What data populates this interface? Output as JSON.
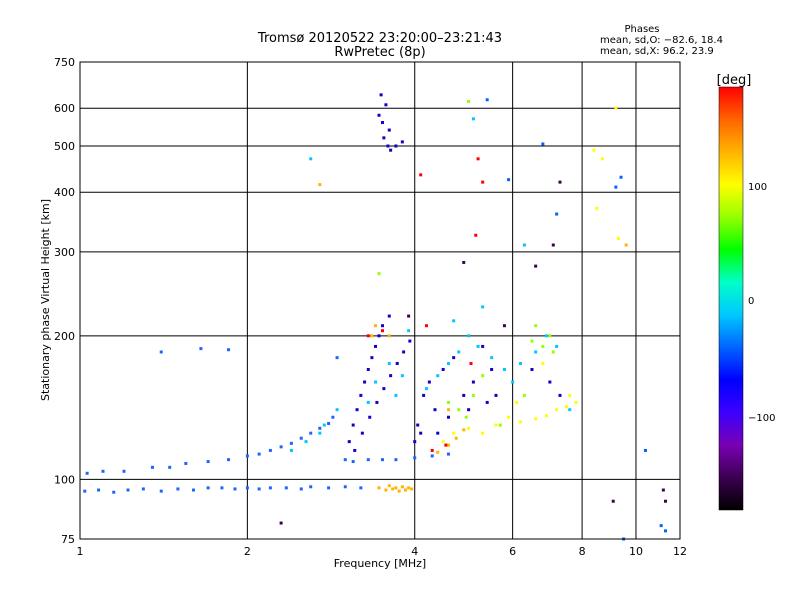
{
  "chart_data": {
    "type": "scatter",
    "title": "Tromsø 20120522 23:20:00–23:21:43",
    "subtitle": "RwPretec (8p)",
    "xlabel": "Frequency [MHz]",
    "ylabel": "Stationary phase Virtual Height [km]",
    "x_scale": "log",
    "y_scale": "log",
    "xlim": [
      1,
      12
    ],
    "ylim": [
      75,
      750
    ],
    "x_ticks": [
      1,
      2,
      4,
      6,
      8,
      10,
      12
    ],
    "y_ticks": [
      75,
      100,
      200,
      300,
      400,
      500,
      600,
      750
    ],
    "grid": true,
    "phases_box": {
      "title": "Phases",
      "line_o": "mean, sd,O: −82.6, 18.4",
      "line_x": "mean, sd,X:  96.2, 23.9"
    },
    "colorbar": {
      "label": "[deg]",
      "range": [
        -180,
        180
      ],
      "ticks": [
        "100",
        "0",
        "−100"
      ],
      "colormap": [
        "#000000",
        "#3c0050",
        "#7800b4",
        "#3c00ff",
        "#0000ff",
        "#0064ff",
        "#00c8ff",
        "#00ffc8",
        "#00ff00",
        "#96ff00",
        "#ffff00",
        "#ffb400",
        "#ff6400",
        "#ff0000"
      ]
    },
    "series": [
      {
        "color": "#1e64ff",
        "points": [
          [
            1.02,
            94.5
          ],
          [
            1.08,
            95
          ],
          [
            1.15,
            94
          ],
          [
            1.22,
            95
          ],
          [
            1.3,
            95.5
          ],
          [
            1.4,
            94.5
          ],
          [
            1.5,
            95.5
          ],
          [
            1.6,
            95
          ],
          [
            1.7,
            96
          ],
          [
            1.8,
            96
          ],
          [
            1.9,
            95.5
          ],
          [
            2.0,
            96
          ],
          [
            2.1,
            95.5
          ],
          [
            2.2,
            96
          ],
          [
            2.35,
            96
          ],
          [
            2.5,
            95.5
          ],
          [
            2.6,
            96.5
          ],
          [
            2.8,
            96
          ],
          [
            3.0,
            96.5
          ],
          [
            3.2,
            96
          ],
          [
            1.03,
            103
          ],
          [
            1.1,
            104
          ],
          [
            1.2,
            104
          ],
          [
            1.35,
            106
          ],
          [
            1.45,
            106
          ],
          [
            1.55,
            108
          ],
          [
            1.7,
            109
          ],
          [
            1.85,
            110
          ],
          [
            2.0,
            112
          ],
          [
            2.1,
            113
          ],
          [
            2.2,
            115
          ],
          [
            2.3,
            117
          ],
          [
            2.4,
            119
          ],
          [
            2.5,
            122
          ],
          [
            2.6,
            125
          ],
          [
            2.7,
            128
          ],
          [
            2.8,
            131
          ],
          [
            3.0,
            110
          ],
          [
            3.1,
            109
          ],
          [
            3.3,
            110
          ],
          [
            3.5,
            110
          ],
          [
            3.7,
            110
          ],
          [
            4.0,
            111
          ],
          [
            4.3,
            112
          ],
          [
            4.6,
            113
          ],
          [
            2.85,
            135
          ],
          [
            2.9,
            180
          ],
          [
            1.4,
            185
          ],
          [
            1.65,
            188
          ],
          [
            1.85,
            187
          ]
        ]
      },
      {
        "color": "#1400c8",
        "points": [
          [
            3.1,
            130
          ],
          [
            3.15,
            140
          ],
          [
            3.2,
            150
          ],
          [
            3.25,
            160
          ],
          [
            3.3,
            170
          ],
          [
            3.35,
            180
          ],
          [
            3.4,
            190
          ],
          [
            3.45,
            200
          ],
          [
            3.5,
            210
          ],
          [
            3.6,
            220
          ],
          [
            3.05,
            120
          ],
          [
            3.12,
            115
          ],
          [
            3.22,
            125
          ],
          [
            3.32,
            135
          ],
          [
            3.42,
            145
          ],
          [
            3.52,
            155
          ],
          [
            3.62,
            165
          ],
          [
            3.72,
            175
          ],
          [
            3.82,
            185
          ],
          [
            3.92,
            195
          ],
          [
            4.05,
            130
          ],
          [
            4.15,
            150
          ],
          [
            4.25,
            160
          ],
          [
            4.35,
            140
          ],
          [
            4.5,
            170
          ],
          [
            4.7,
            180
          ],
          [
            4.9,
            150
          ],
          [
            5.1,
            160
          ],
          [
            5.3,
            190
          ],
          [
            5.5,
            170
          ],
          [
            4.0,
            120
          ],
          [
            4.1,
            125
          ],
          [
            4.4,
            125
          ],
          [
            4.6,
            135
          ],
          [
            5.0,
            140
          ],
          [
            5.4,
            145
          ],
          [
            5.6,
            150
          ],
          [
            6.5,
            170
          ],
          [
            7.0,
            160
          ],
          [
            7.3,
            150
          ],
          [
            3.45,
            580
          ],
          [
            3.5,
            560
          ],
          [
            3.55,
            610
          ],
          [
            3.6,
            540
          ],
          [
            3.52,
            520
          ],
          [
            3.58,
            500
          ],
          [
            3.62,
            490
          ],
          [
            3.7,
            500
          ],
          [
            3.8,
            510
          ],
          [
            3.48,
            640
          ]
        ]
      },
      {
        "color": "#00c8ff",
        "points": [
          [
            2.4,
            115
          ],
          [
            2.55,
            120
          ],
          [
            2.7,
            125
          ],
          [
            2.75,
            130
          ],
          [
            2.9,
            140
          ],
          [
            3.3,
            145
          ],
          [
            3.4,
            160
          ],
          [
            3.6,
            175
          ],
          [
            3.7,
            150
          ],
          [
            3.8,
            165
          ],
          [
            4.2,
            155
          ],
          [
            4.4,
            165
          ],
          [
            4.6,
            175
          ],
          [
            4.8,
            185
          ],
          [
            5.0,
            200
          ],
          [
            5.2,
            190
          ],
          [
            5.5,
            180
          ],
          [
            6.2,
            175
          ],
          [
            6.6,
            185
          ],
          [
            2.6,
            470
          ],
          [
            5.8,
            170
          ],
          [
            6.0,
            160
          ],
          [
            3.9,
            205
          ],
          [
            4.7,
            215
          ],
          [
            5.3,
            230
          ],
          [
            6.3,
            310
          ],
          [
            5.1,
            570
          ],
          [
            6.9,
            200
          ],
          [
            7.2,
            190
          ],
          [
            7.6,
            140
          ]
        ]
      },
      {
        "color": "#96ff00",
        "points": [
          [
            4.8,
            140
          ],
          [
            4.95,
            135
          ],
          [
            5.1,
            150
          ],
          [
            5.3,
            165
          ],
          [
            6.5,
            195
          ],
          [
            6.8,
            190
          ],
          [
            7.0,
            200
          ],
          [
            3.45,
            270
          ],
          [
            6.6,
            210
          ],
          [
            5.0,
            620
          ],
          [
            7.1,
            185
          ],
          [
            6.3,
            150
          ],
          [
            5.7,
            130
          ],
          [
            4.6,
            145
          ]
        ]
      },
      {
        "color": "#ffff00",
        "points": [
          [
            4.5,
            120
          ],
          [
            4.7,
            125
          ],
          [
            5.0,
            128
          ],
          [
            5.3,
            125
          ],
          [
            5.6,
            130
          ],
          [
            5.9,
            135
          ],
          [
            6.2,
            132
          ],
          [
            6.6,
            134
          ],
          [
            6.9,
            136
          ],
          [
            7.2,
            140
          ],
          [
            7.5,
            142
          ],
          [
            7.8,
            145
          ],
          [
            8.4,
            490
          ],
          [
            8.7,
            470
          ],
          [
            9.3,
            320
          ],
          [
            8.5,
            370
          ],
          [
            6.8,
            175
          ],
          [
            7.6,
            150
          ],
          [
            9.2,
            600
          ],
          [
            6.1,
            145
          ]
        ]
      },
      {
        "color": "#ffb400",
        "points": [
          [
            3.45,
            96
          ],
          [
            3.55,
            95
          ],
          [
            3.6,
            97
          ],
          [
            3.65,
            95.5
          ],
          [
            3.7,
            96
          ],
          [
            3.75,
            94.5
          ],
          [
            3.8,
            96.5
          ],
          [
            3.85,
            95
          ],
          [
            3.9,
            96
          ],
          [
            3.95,
            95.5
          ],
          [
            3.4,
            210
          ],
          [
            3.35,
            200
          ],
          [
            4.6,
            118
          ],
          [
            4.75,
            122
          ],
          [
            4.4,
            114
          ],
          [
            4.9,
            127
          ],
          [
            2.7,
            415
          ],
          [
            3.6,
            200
          ],
          [
            9.6,
            310
          ],
          [
            4.6,
            140
          ]
        ]
      },
      {
        "color": "#ff0000",
        "points": [
          [
            4.1,
            435
          ],
          [
            5.2,
            470
          ],
          [
            5.3,
            420
          ],
          [
            3.5,
            205
          ],
          [
            4.3,
            115
          ],
          [
            4.55,
            118
          ],
          [
            5.15,
            325
          ],
          [
            3.3,
            200
          ],
          [
            4.2,
            210
          ],
          [
            5.05,
            175
          ]
        ]
      },
      {
        "color": "#3c0050",
        "points": [
          [
            2.3,
            81
          ],
          [
            9.1,
            90
          ],
          [
            11.2,
            95
          ],
          [
            11.3,
            90
          ],
          [
            7.3,
            420
          ],
          [
            5.8,
            210
          ],
          [
            6.6,
            280
          ],
          [
            7.1,
            310
          ],
          [
            4.9,
            285
          ],
          [
            3.9,
            220
          ]
        ]
      },
      {
        "color": "#0064ff",
        "points": [
          [
            9.2,
            410
          ],
          [
            9.5,
            75
          ],
          [
            10.4,
            115
          ],
          [
            11.1,
            80
          ],
          [
            11.3,
            78
          ],
          [
            5.9,
            425
          ],
          [
            7.2,
            360
          ],
          [
            6.8,
            505
          ],
          [
            5.4,
            625
          ],
          [
            9.4,
            430
          ]
        ]
      }
    ]
  }
}
